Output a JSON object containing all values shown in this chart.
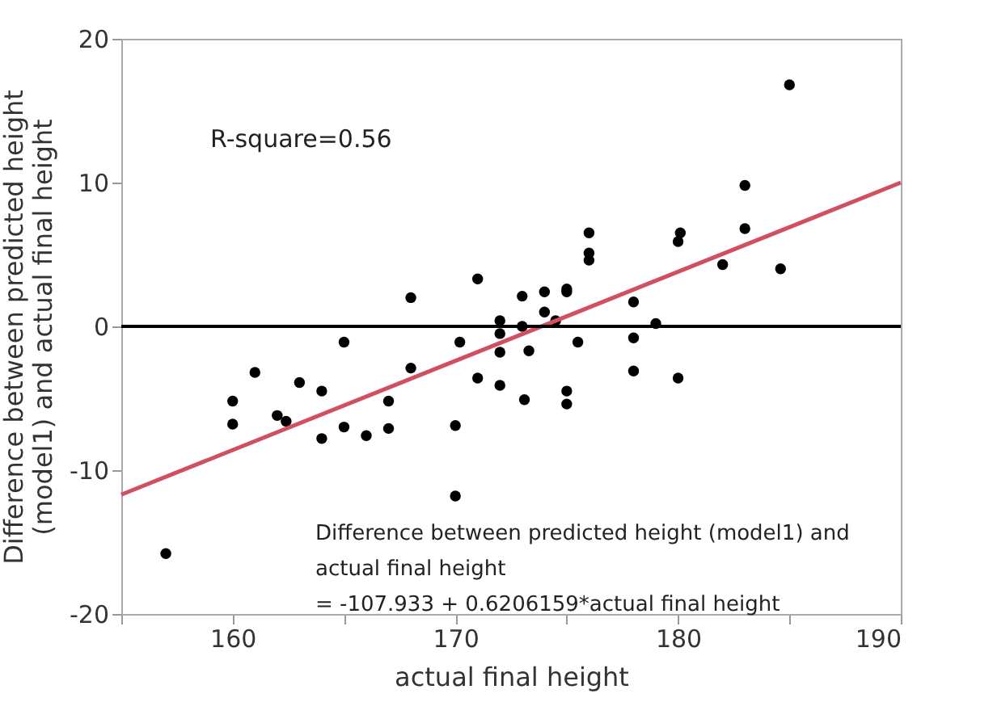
{
  "chart_data": {
    "type": "scatter",
    "xlabel": "actual final height",
    "ylabel": "Difference between predicted height\n(model1) and actual final height",
    "xlim": [
      155,
      190
    ],
    "xticks": [
      {
        "value": 155,
        "label": null
      },
      160,
      {
        "value": 165,
        "label": null
      },
      170,
      {
        "value": 175,
        "label": null
      },
      180,
      {
        "value": 185,
        "label": null
      },
      190
    ],
    "ylim": [
      -20,
      20
    ],
    "yticks": [
      -20,
      -10,
      0,
      10,
      20
    ],
    "grid": false,
    "series": [
      {
        "marker": "circle",
        "color": "#000000",
        "x": [
          157,
          160,
          160,
          161,
          162,
          162.4,
          163,
          164,
          164,
          165,
          165,
          166,
          167,
          167,
          168,
          168,
          170,
          170,
          170.2,
          171,
          171,
          172,
          172,
          172,
          172,
          173,
          173,
          173.1,
          173.3,
          174,
          174,
          174.5,
          175,
          175,
          175,
          175,
          175.5,
          176,
          176,
          176,
          178,
          178,
          178,
          179,
          180,
          180.1,
          180,
          182,
          183,
          183,
          184.6,
          185
        ],
        "values": [
          -15.8,
          -5.2,
          -6.8,
          -3.2,
          -6.2,
          -6.6,
          -3.9,
          -4.5,
          -7.8,
          -1.1,
          -7.0,
          -7.6,
          -5.2,
          -7.1,
          2.0,
          -2.9,
          -6.9,
          -11.8,
          -1.1,
          3.3,
          -3.6,
          0.4,
          -0.5,
          -1.8,
          -4.1,
          2.1,
          0.0,
          -5.1,
          -1.7,
          2.4,
          1.0,
          0.4,
          2.6,
          2.4,
          -4.5,
          -5.4,
          -1.1,
          6.5,
          5.1,
          4.6,
          1.7,
          -0.8,
          -3.1,
          0.2,
          5.9,
          6.5,
          -3.6,
          4.3,
          9.8,
          6.8,
          4.0,
          16.8
        ]
      },
      {
        "type": "line",
        "color": "#d0505f",
        "x": [
          155,
          190
        ],
        "values": [
          -11.7,
          10.0
        ]
      }
    ],
    "ref_lines": [
      {
        "axis": "y",
        "value": 0,
        "color": "#000000"
      }
    ],
    "annotations": [
      "R-square=0.56",
      "Difference between predicted height (model1) and\nactual final height\n = -107.933 + 0.6206159*actual final height"
    ]
  }
}
